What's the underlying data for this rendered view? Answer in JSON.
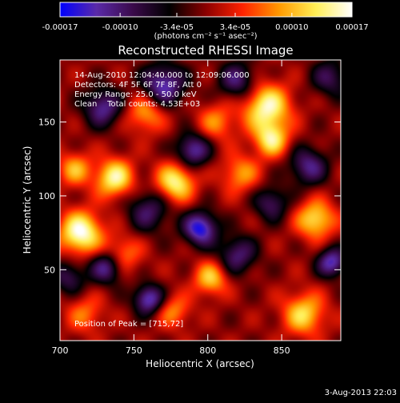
{
  "chart_data": {
    "type": "heatmap",
    "title": "Reconstructed RHESSI Image",
    "xlabel": "Heliocentric X (arcsec)",
    "ylabel": "Heliocentric Y (arcsec)",
    "xlim": [
      700,
      890
    ],
    "ylim": [
      2,
      192
    ],
    "x_ticks": [
      "700",
      "750",
      "800",
      "850"
    ],
    "x_tick_values": [
      700,
      750,
      800,
      850
    ],
    "y_ticks": [
      "50",
      "100",
      "150"
    ],
    "y_tick_values": [
      50,
      100,
      150
    ],
    "colorbar": {
      "range": [
        -0.00017,
        0.00017
      ],
      "ticks": [
        "-0.00017",
        "-0.00010",
        "-3.4e-05",
        "3.4e-05",
        "0.00010",
        "0.00017"
      ],
      "tick_values": [
        -0.00017,
        -0.0001,
        -3.4e-05,
        3.4e-05,
        0.0001,
        0.00017
      ],
      "units_label": "(photons cm⁻² s⁻¹ asec⁻²)",
      "colors": [
        "#0000ff",
        "#5a2aa8",
        "#3a0a4a",
        "#000000",
        "#8b0000",
        "#ff2200",
        "#ff9900",
        "#ffee55",
        "#ffffff"
      ]
    },
    "annotations": {
      "time_range": "14-Aug-2010 12:04:40.000 to 12:09:06.000",
      "detectors": "Detectors: 4F 5F 6F 7F 8F, Att 0",
      "energy_range": "Energy Range: 25.0 - 50.0 keV",
      "clean_counts": "Clean    Total counts: 4.53E+03",
      "peak": "Position of Peak = [715,72]"
    },
    "peak_position": [
      715,
      72
    ],
    "sources": [
      {
        "x": 714,
        "y": 75,
        "intensity": 1.0,
        "sigma": 10
      },
      {
        "x": 737,
        "y": 112,
        "intensity": 0.85,
        "sigma": 9
      },
      {
        "x": 778,
        "y": 109,
        "intensity": 0.85,
        "sigma": 9
      },
      {
        "x": 840,
        "y": 160,
        "intensity": 0.9,
        "sigma": 11
      },
      {
        "x": 843,
        "y": 138,
        "intensity": 0.75,
        "sigma": 8
      },
      {
        "x": 873,
        "y": 84,
        "intensity": 0.75,
        "sigma": 9
      },
      {
        "x": 865,
        "y": 20,
        "intensity": 0.7,
        "sigma": 10
      },
      {
        "x": 802,
        "y": 44,
        "intensity": 0.65,
        "sigma": 8
      },
      {
        "x": 742,
        "y": 60,
        "intensity": 0.5,
        "sigma": 9
      },
      {
        "x": 822,
        "y": 115,
        "intensity": 0.5,
        "sigma": 9
      },
      {
        "x": 717,
        "y": 20,
        "intensity": 0.4,
        "sigma": 9
      },
      {
        "x": 758,
        "y": 156,
        "intensity": 0.55,
        "sigma": 9
      },
      {
        "x": 806,
        "y": 150,
        "intensity": 0.45,
        "sigma": 9
      },
      {
        "x": 777,
        "y": 22,
        "intensity": 0.45,
        "sigma": 8
      },
      {
        "x": 710,
        "y": 118,
        "intensity": 0.55,
        "sigma": 8
      },
      {
        "x": 795,
        "y": 78,
        "intensity": -0.95,
        "sigma": 8
      },
      {
        "x": 760,
        "y": 30,
        "intensity": -0.85,
        "sigma": 7
      },
      {
        "x": 790,
        "y": 131,
        "intensity": -0.75,
        "sigma": 8
      },
      {
        "x": 729,
        "y": 160,
        "intensity": -0.7,
        "sigma": 9
      },
      {
        "x": 770,
        "y": 175,
        "intensity": -0.8,
        "sigma": 10
      },
      {
        "x": 884,
        "y": 55,
        "intensity": -0.8,
        "sigma": 7
      },
      {
        "x": 732,
        "y": 52,
        "intensity": -0.75,
        "sigma": 8
      },
      {
        "x": 868,
        "y": 120,
        "intensity": -0.65,
        "sigma": 9
      },
      {
        "x": 760,
        "y": 90,
        "intensity": -0.55,
        "sigma": 10
      },
      {
        "x": 820,
        "y": 60,
        "intensity": -0.6,
        "sigma": 9
      },
      {
        "x": 843,
        "y": 95,
        "intensity": -0.55,
        "sigma": 8
      },
      {
        "x": 883,
        "y": 180,
        "intensity": -0.5,
        "sigma": 9
      },
      {
        "x": 706,
        "y": 45,
        "intensity": -0.5,
        "sigma": 8
      },
      {
        "x": 820,
        "y": 178,
        "intensity": -0.6,
        "sigma": 9
      }
    ]
  },
  "footer": {
    "timestamp": "3-Aug-2013 22:03"
  }
}
